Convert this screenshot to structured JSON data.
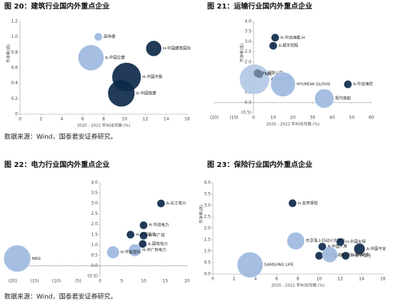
{
  "chart_data": [
    {
      "type": "scatter",
      "title": "图 20：建筑行业国内外重点企业",
      "x_label": "2020 - 2022 年ROE均值 (%)",
      "y_label": "市净率(倍)",
      "xlim": [
        0,
        16
      ],
      "xticks": [
        0,
        2,
        4,
        6,
        8,
        10,
        12,
        14,
        16
      ],
      "ylim": [
        0,
        1.2
      ],
      "yticks": [
        0,
        0.2,
        0.4,
        0.6,
        0.8,
        {
          "value": 1,
          "label": "1.0"
        },
        1.2
      ],
      "labels": [
        "高伟德",
        "A-中国交建",
        "H-中国建筑国际",
        "H-中国中铁",
        "H-中国铁建"
      ],
      "x": [
        7.5,
        6.8,
        12.8,
        10.2,
        9.7
      ],
      "values": [
        1.0,
        0.73,
        0.85,
        0.48,
        0.27
      ],
      "sizes": [
        2,
        22,
        8,
        28,
        24
      ],
      "colors": [
        "#9db9e0",
        "#9db9e0",
        "#0e2a4a",
        "#0e2a4a",
        "#0e2a4a"
      ]
    },
    {
      "type": "scatter",
      "title": "图 21：运输行业国内外重点企业",
      "x_label": "2020 - 2022 年ROE均值 (%)",
      "y_label": "市净率(倍)",
      "xlim": [
        -20,
        60
      ],
      "xticks": [
        {
          "value": -20,
          "label": "(20)"
        },
        {
          "value": -10,
          "label": "(10)"
        },
        0,
        10,
        20,
        30,
        40,
        50,
        60
      ],
      "ylim": [
        -0.5,
        4
      ],
      "yticks": [
        {
          "value": -0.5,
          "label": "(0.5)"
        },
        {
          "value": 0,
          "label": "0.0"
        },
        0.5,
        {
          "value": 1,
          "label": "1.0"
        },
        1.5,
        {
          "value": 2,
          "label": "2.0"
        },
        2.5,
        {
          "value": 3,
          "label": "3.0"
        },
        3.5,
        {
          "value": 4,
          "label": "4.0"
        }
      ],
      "labels": [
        "H-中远海能-H",
        "A-顺丰控股",
        "A-京沪高铁",
        "H-港铁公司",
        "KAL",
        "HYUNDAI GLOVIS",
        "A-中远海控",
        "现代商船"
      ],
      "x": [
        11,
        10,
        0.5,
        2,
        3,
        15,
        48,
        36
      ],
      "values": [
        3.2,
        2.8,
        1.15,
        1.45,
        1.4,
        0.9,
        0.9,
        0.2
      ],
      "sizes": [
        2,
        2,
        30,
        2,
        2,
        20,
        2,
        12
      ],
      "colors": [
        "#0e2a4a",
        "#0e2a4a",
        "#b4c9e6",
        "#6d7f96",
        "#6d7f96",
        "#9db9e0",
        "#0e2a4a",
        "#9db9e0"
      ]
    },
    {
      "type": "scatter",
      "title": "图 22：电力行业国内外重点企业",
      "x_label": "",
      "y_label": "",
      "xlim": [
        -20,
        20
      ],
      "xticks": [
        {
          "value": -20,
          "label": "(20)"
        },
        {
          "value": -15,
          "label": "(15)"
        },
        {
          "value": -10,
          "label": "(10)"
        },
        {
          "value": -5,
          "label": "(5)"
        },
        0,
        5,
        10,
        15,
        20
      ],
      "ylim": [
        -0.5,
        4
      ],
      "yticks": [
        {
          "value": -0.5,
          "label": "(0.5)"
        },
        {
          "value": 0,
          "label": "0.0"
        },
        0.5,
        {
          "value": 1,
          "label": "1.0"
        },
        1.5,
        {
          "value": 2,
          "label": "2.0"
        },
        2.5,
        {
          "value": 3,
          "label": "3.0"
        },
        3.5,
        {
          "value": 4,
          "label": "4.0"
        }
      ],
      "labels": [
        "A-长江电力",
        "H-华润电力",
        "H-中国核电",
        "H-中广核",
        "A-国电电力",
        "H-中广核电力",
        "H-华能国际",
        "NRG"
      ],
      "x": [
        14,
        10,
        7,
        10,
        9.8,
        8,
        3,
        -19
      ],
      "values": [
        3.0,
        1.95,
        1.5,
        1.45,
        1.05,
        0.75,
        0.65,
        0.35
      ],
      "sizes": [
        2,
        2,
        2,
        2,
        2,
        5,
        5,
        24
      ],
      "colors": [
        "#0e2a4a",
        "#0e2a4a",
        "#0e2a4a",
        "#0e2a4a",
        "#0e2a4a",
        "#9db9e0",
        "#9db9e0",
        "#9db9e0"
      ]
    },
    {
      "type": "scatter",
      "title": "图 23：保险行业国内外重点企业",
      "x_label": "2020 - 2022 年ROE均值 (%)",
      "y_label": "市净率(倍)",
      "xlim": [
        0,
        16
      ],
      "xticks": [
        0,
        2,
        4,
        6,
        8,
        10,
        12,
        14,
        16
      ],
      "ylim": [
        0,
        4
      ],
      "yticks": [
        {
          "value": 0,
          "label": "0.0"
        },
        0.5,
        {
          "value": 1,
          "label": "1.0"
        },
        1.5,
        {
          "value": 2,
          "label": "2.0"
        },
        2.5,
        {
          "value": 3,
          "label": "3.0"
        },
        3.5,
        {
          "value": 4,
          "label": "4.0"
        }
      ],
      "labels": [
        "H-友邦保险",
        "东京海上日动火灾保险",
        "SAMSUNG LIFE",
        "A-中国人寿",
        "H-中国太保",
        "A-中国平安",
        "H-新华保险",
        "H-中国人寿",
        "DB INSURANCE"
      ],
      "x": [
        7.5,
        7.8,
        3.5,
        10.3,
        12,
        13.8,
        12.5,
        10,
        11
      ],
      "values": [
        3.1,
        1.45,
        0.4,
        1.2,
        1.4,
        1.1,
        0.8,
        0.8,
        0.85
      ],
      "sizes": [
        2,
        10,
        22,
        2,
        2,
        4,
        2,
        2,
        8
      ],
      "colors": [
        "#0e2a4a",
        "#9db9e0",
        "#9db9e0",
        "#0e2a4a",
        "#0e2a4a",
        "#0e2a4a",
        "#0e2a4a",
        "#0e2a4a",
        "#9db9e0"
      ]
    }
  ],
  "sources": [
    "数据来源：Wind，国泰君安证券研究。",
    "数据来源：Wind，国泰君安证券研究。"
  ]
}
